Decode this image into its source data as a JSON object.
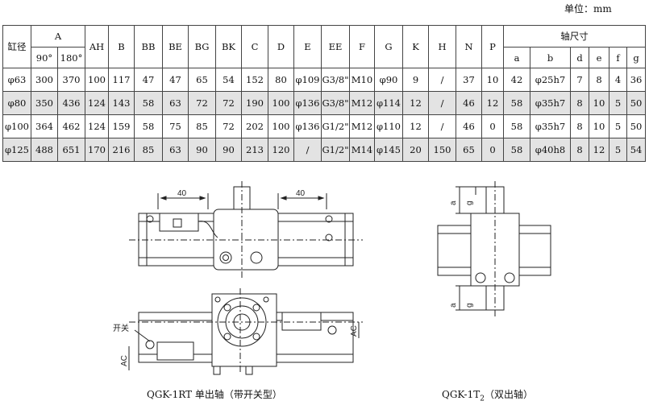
{
  "unit_label": "单位：mm",
  "table": {
    "headers": {
      "bore": "缸径",
      "A": "A",
      "A_90": "90°",
      "A_180": "180°",
      "AH": "AH",
      "B": "B",
      "BB": "BB",
      "BE": "BE",
      "BG": "BG",
      "BK": "BK",
      "C": "C",
      "D": "D",
      "E": "E",
      "EE": "EE",
      "F": "F",
      "G": "G",
      "K": "K",
      "H": "H",
      "N": "N",
      "P": "P",
      "shaft": "轴尺寸",
      "a": "a",
      "b": "b",
      "d": "d",
      "e": "e",
      "f": "f",
      "g": "g"
    },
    "rows": [
      [
        "φ63",
        "300",
        "370",
        "100",
        "117",
        "47",
        "47",
        "65",
        "54",
        "152",
        "80",
        "φ109",
        "G3/8\"",
        "M10",
        "φ90",
        "9",
        "/",
        "37",
        "10",
        "42",
        "φ25h7",
        "7",
        "8",
        "4",
        "36"
      ],
      [
        "φ80",
        "350",
        "436",
        "124",
        "143",
        "58",
        "63",
        "72",
        "72",
        "190",
        "100",
        "φ136",
        "G3/8\"",
        "M12",
        "φ114",
        "12",
        "/",
        "46",
        "12",
        "58",
        "φ35h7",
        "8",
        "10",
        "5",
        "50"
      ],
      [
        "φ100",
        "364",
        "462",
        "124",
        "159",
        "58",
        "75",
        "85",
        "72",
        "202",
        "100",
        "φ136",
        "G1/2\"",
        "M12",
        "φ110",
        "12",
        "/",
        "46",
        "0",
        "58",
        "φ35h7",
        "8",
        "10",
        "5",
        "50"
      ],
      [
        "φ125",
        "488",
        "651",
        "170",
        "216",
        "85",
        "63",
        "90",
        "90",
        "213",
        "120",
        "/",
        "G1/2\"",
        "M14",
        "φ145",
        "20",
        "150",
        "65",
        "0",
        "58",
        "φ40h8",
        "8",
        "12",
        "5",
        "54"
      ]
    ]
  },
  "drawing": {
    "dim_40_left": "40",
    "dim_40_right": "40",
    "label_switch": "开关",
    "label_AC_left": "AC",
    "label_AC_right": "AC",
    "label_a_top": "a",
    "label_g_top": "g",
    "label_a_bot": "a",
    "label_g_bot": "g"
  },
  "captions": {
    "left": "QGK-1RT 单出轴（带开关型）",
    "right_prefix": "QGK-1T",
    "right_sub": "2",
    "right_suffix": "（双出轴）"
  }
}
